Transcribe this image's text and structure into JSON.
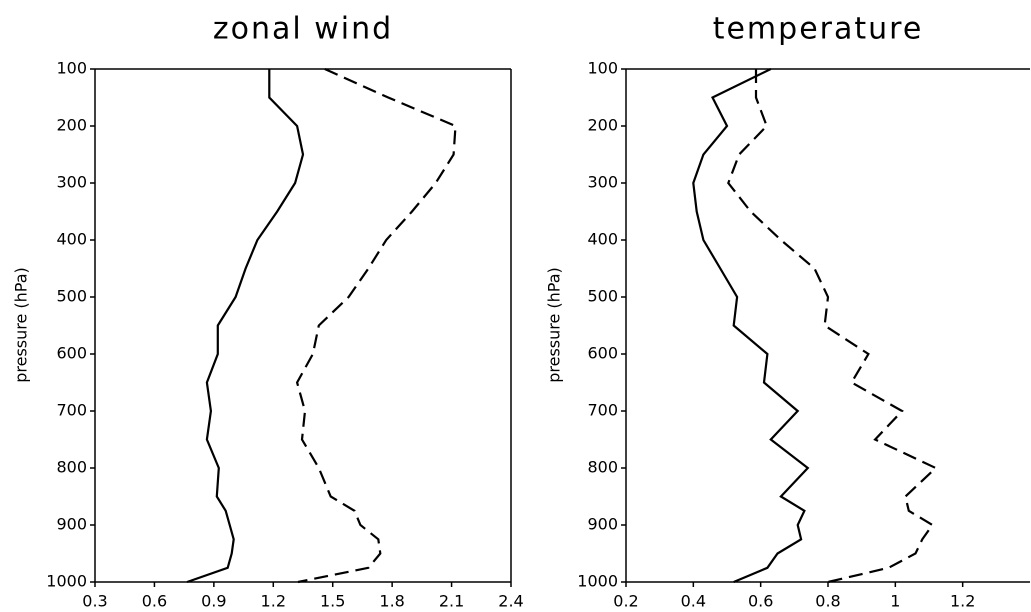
{
  "chart_data": [
    {
      "type": "line",
      "title": "zonal wind",
      "ylabel": "pressure (hPa)",
      "y": [
        100,
        150,
        200,
        250,
        300,
        350,
        400,
        450,
        500,
        550,
        600,
        650,
        700,
        750,
        800,
        850,
        875,
        900,
        925,
        950,
        975,
        1000
      ],
      "series": [
        {
          "color": "#000000",
          "dash": false,
          "values": [
            1.18,
            1.18,
            1.32,
            1.35,
            1.31,
            1.22,
            1.12,
            1.06,
            1.01,
            0.92,
            0.92,
            0.865,
            0.885,
            0.865,
            0.925,
            0.915,
            0.96,
            0.98,
            1.0,
            0.99,
            0.97,
            0.765
          ]
        },
        {
          "color": "#000000",
          "dash": true,
          "values": [
            1.46,
            1.78,
            2.12,
            2.11,
            2.02,
            1.9,
            1.77,
            1.68,
            1.58,
            1.43,
            1.4,
            1.32,
            1.36,
            1.345,
            1.43,
            1.49,
            1.61,
            1.64,
            1.73,
            1.74,
            1.68,
            1.325
          ]
        }
      ],
      "xlim": [
        0.3,
        2.4
      ],
      "xticks": [
        0.3,
        0.6,
        0.9,
        1.2,
        1.5,
        1.8,
        2.1,
        2.4
      ],
      "ylim": [
        1000,
        100
      ],
      "yticks": [
        100,
        200,
        300,
        400,
        500,
        600,
        700,
        800,
        900,
        1000
      ]
    },
    {
      "type": "line",
      "title": "temperature",
      "ylabel": "pressure (hPa)",
      "y": [
        100,
        150,
        200,
        250,
        300,
        350,
        400,
        450,
        500,
        550,
        600,
        650,
        700,
        750,
        800,
        850,
        875,
        900,
        925,
        950,
        975,
        1000
      ],
      "series": [
        {
          "color": "#000000",
          "dash": false,
          "values": [
            0.63,
            0.457,
            0.5,
            0.43,
            0.4,
            0.41,
            0.43,
            0.48,
            0.53,
            0.52,
            0.62,
            0.61,
            0.71,
            0.63,
            0.74,
            0.66,
            0.73,
            0.71,
            0.72,
            0.65,
            0.62,
            0.52
          ]
        },
        {
          "color": "#000000",
          "dash": true,
          "values": [
            0.586,
            0.586,
            0.618,
            0.536,
            0.504,
            0.57,
            0.66,
            0.76,
            0.8,
            0.79,
            0.92,
            0.87,
            1.02,
            0.94,
            1.12,
            1.03,
            1.04,
            1.11,
            1.08,
            1.06,
            0.98,
            0.8
          ]
        }
      ],
      "xlim": [
        0.2,
        1.4
      ],
      "xticks": [
        0.2,
        0.4,
        0.6,
        0.8,
        1,
        1.2
      ],
      "ylim": [
        1000,
        100
      ],
      "yticks": [
        100,
        200,
        300,
        400,
        500,
        600,
        700,
        800,
        900,
        1000
      ]
    }
  ]
}
